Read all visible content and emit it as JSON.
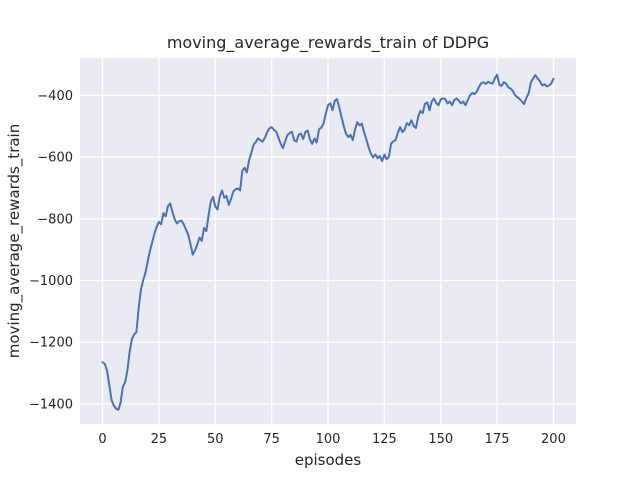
{
  "figure": {
    "background": "#ffffff"
  },
  "chart_data": {
    "type": "line",
    "title": "moving_average_rewards_train of DDPG",
    "xlabel": "episodes",
    "ylabel": "moving_average_rewards_train",
    "grid": true,
    "legend_position": "none",
    "xlim": [
      -10,
      210
    ],
    "ylim": [
      -1465,
      -279
    ],
    "xticks": [
      0,
      25,
      50,
      75,
      100,
      125,
      150,
      175,
      200
    ],
    "yticks": [
      -400,
      -600,
      -800,
      -1000,
      -1200,
      -1400
    ],
    "style": {
      "panel_bg": "#eaeaf2",
      "grid_color": "#ffffff",
      "line_color": "#4c72b0",
      "text_color": "#262626",
      "line_width": 2
    },
    "x_start": 0,
    "x_step": 1,
    "series": [
      {
        "name": "moving_average_rewards_train",
        "values": [
          -1265,
          -1270,
          -1292,
          -1340,
          -1388,
          -1405,
          -1415,
          -1419,
          -1396,
          -1345,
          -1330,
          -1293,
          -1232,
          -1190,
          -1175,
          -1168,
          -1090,
          -1030,
          -1000,
          -975,
          -940,
          -905,
          -878,
          -848,
          -826,
          -810,
          -818,
          -782,
          -792,
          -760,
          -750,
          -777,
          -802,
          -815,
          -808,
          -806,
          -818,
          -835,
          -852,
          -882,
          -916,
          -902,
          -884,
          -861,
          -872,
          -830,
          -840,
          -790,
          -745,
          -729,
          -760,
          -770,
          -728,
          -708,
          -732,
          -726,
          -755,
          -735,
          -712,
          -704,
          -702,
          -708,
          -645,
          -634,
          -650,
          -610,
          -587,
          -560,
          -551,
          -539,
          -546,
          -550,
          -538,
          -520,
          -507,
          -503,
          -512,
          -517,
          -537,
          -557,
          -571,
          -549,
          -529,
          -522,
          -518,
          -546,
          -550,
          -528,
          -524,
          -541,
          -518,
          -514,
          -543,
          -557,
          -540,
          -553,
          -510,
          -505,
          -492,
          -460,
          -432,
          -426,
          -448,
          -418,
          -412,
          -440,
          -470,
          -500,
          -525,
          -535,
          -528,
          -545,
          -510,
          -487,
          -497,
          -492,
          -519,
          -542,
          -568,
          -588,
          -601,
          -591,
          -604,
          -597,
          -613,
          -592,
          -607,
          -599,
          -556,
          -549,
          -545,
          -521,
          -503,
          -519,
          -511,
          -490,
          -497,
          -481,
          -499,
          -506,
          -470,
          -450,
          -458,
          -428,
          -423,
          -448,
          -420,
          -410,
          -425,
          -432,
          -413,
          -410,
          -412,
          -426,
          -420,
          -432,
          -415,
          -410,
          -417,
          -426,
          -420,
          -432,
          -415,
          -400,
          -392,
          -396,
          -388,
          -372,
          -360,
          -358,
          -363,
          -356,
          -360,
          -362,
          -345,
          -333,
          -366,
          -369,
          -357,
          -362,
          -374,
          -378,
          -386,
          -400,
          -406,
          -412,
          -420,
          -428,
          -408,
          -393,
          -358,
          -345,
          -334,
          -346,
          -354,
          -368,
          -364,
          -371,
          -368,
          -362,
          -346
        ]
      }
    ]
  }
}
